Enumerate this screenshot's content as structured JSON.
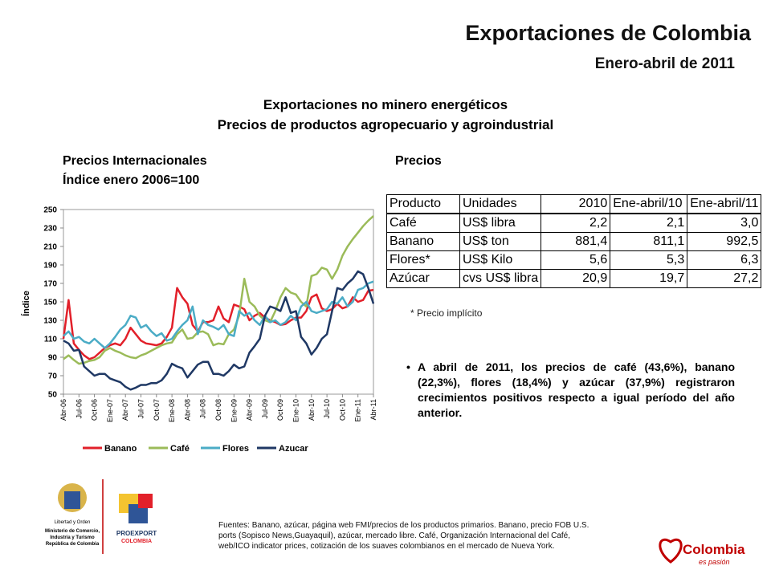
{
  "header": {
    "title": "Exportaciones de Colombia",
    "subtitle": "Enero-abril de 2011"
  },
  "heading": {
    "line1": "Exportaciones no minero energéticos",
    "line2": "Precios de productos agropecuario y agroindustrial"
  },
  "chart_heading": {
    "line1": "Precios Internacionales",
    "line2": "Índice enero 2006=100"
  },
  "table_heading": "Precios",
  "chart_data": {
    "type": "line",
    "y_label": "Índice",
    "ylim": [
      50,
      250
    ],
    "yticks": [
      50,
      70,
      90,
      110,
      130,
      150,
      170,
      190,
      210,
      230,
      250
    ],
    "legend": "bottom",
    "categories": [
      "Abr-06",
      null,
      null,
      "Jul-06",
      null,
      null,
      "Oct-06",
      null,
      null,
      "Ene-07",
      null,
      null,
      "Abr-07",
      null,
      null,
      "Jul-07",
      null,
      null,
      "Oct-07",
      null,
      null,
      "Ene-08",
      null,
      null,
      "Abr-08",
      null,
      null,
      "Jul-08",
      null,
      null,
      "Oct-08",
      null,
      null,
      "Ene-09",
      null,
      null,
      "Abr-09",
      null,
      null,
      "Jul-09",
      null,
      null,
      "Oct-09",
      null,
      null,
      "Ene-10",
      null,
      null,
      "Abr-10",
      null,
      null,
      "Jul-10",
      null,
      null,
      "Oct-10",
      null,
      null,
      "Ene-11",
      null,
      null,
      "Abr-11"
    ],
    "series": [
      {
        "name": "Banano",
        "color": "#e2202a",
        "values": [
          110,
          152,
          105,
          98,
          92,
          88,
          90,
          95,
          100,
          103,
          105,
          103,
          110,
          122,
          115,
          108,
          105,
          104,
          103,
          105,
          112,
          122,
          165,
          155,
          148,
          125,
          118,
          128,
          128,
          130,
          145,
          132,
          128,
          147,
          145,
          142,
          130,
          135,
          138,
          133,
          130,
          128,
          125,
          126,
          130,
          133,
          133,
          140,
          155,
          158,
          143,
          140,
          142,
          148,
          143,
          145,
          155,
          150,
          152,
          162,
          163
        ]
      },
      {
        "name": "Café",
        "color": "#9bbb59",
        "values": [
          88,
          92,
          87,
          83,
          84,
          86,
          87,
          90,
          97,
          100,
          97,
          95,
          92,
          90,
          89,
          92,
          94,
          97,
          100,
          103,
          105,
          106,
          115,
          120,
          110,
          111,
          117,
          118,
          115,
          103,
          105,
          104,
          115,
          120,
          135,
          175,
          150,
          145,
          135,
          130,
          128,
          140,
          155,
          165,
          160,
          158,
          150,
          145,
          178,
          180,
          187,
          185,
          175,
          185,
          200,
          210,
          218,
          225,
          232,
          238,
          243
        ]
      },
      {
        "name": "Flores",
        "color": "#4bacc6",
        "values": [
          113,
          118,
          110,
          112,
          107,
          105,
          110,
          105,
          100,
          105,
          112,
          120,
          125,
          135,
          133,
          122,
          125,
          118,
          113,
          116,
          108,
          110,
          118,
          125,
          130,
          145,
          115,
          130,
          125,
          123,
          120,
          125,
          115,
          113,
          140,
          135,
          138,
          130,
          125,
          135,
          128,
          130,
          125,
          128,
          135,
          130,
          145,
          150,
          140,
          138,
          140,
          142,
          150,
          148,
          155,
          145,
          150,
          163,
          165,
          170,
          172
        ]
      },
      {
        "name": "Azucar",
        "color": "#1f3864",
        "values": [
          108,
          105,
          97,
          98,
          80,
          75,
          70,
          72,
          72,
          67,
          65,
          63,
          58,
          55,
          57,
          60,
          60,
          62,
          62,
          65,
          72,
          83,
          80,
          78,
          68,
          75,
          82,
          85,
          85,
          72,
          72,
          70,
          75,
          82,
          78,
          80,
          95,
          102,
          110,
          135,
          145,
          143,
          140,
          155,
          138,
          140,
          112,
          105,
          93,
          100,
          110,
          115,
          140,
          165,
          163,
          170,
          175,
          183,
          180,
          165,
          148
        ]
      }
    ]
  },
  "table": {
    "header": [
      "Producto",
      "Unidades",
      "2010",
      "Ene-abril/10",
      "Ene-abril/11"
    ],
    "rows": [
      [
        "Café",
        "US$ libra",
        "2,2",
        "2,1",
        "3,0"
      ],
      [
        "Banano",
        "US$ ton",
        "881,4",
        "811,1",
        "992,5"
      ],
      [
        "Flores*",
        "US$ Kilo",
        "5,6",
        "5,3",
        "6,3"
      ],
      [
        "Azúcar",
        "cvs US$ libra",
        "20,9",
        "19,7",
        "27,2"
      ]
    ],
    "note": "* Precio implícito"
  },
  "bullet": "A abril de 2011, los precios de café (43,6%), banano (22,3%), flores (18,4%) y azúcar (37,9%) registraron crecimientos positivos respecto a igual período del año anterior.",
  "sources": "Fuentes: Banano, azúcar, página web FMI/precios de los productos primarios. Banano, precio FOB U.S. ports (Sopisco News,Guayaquil), azúcar, mercado libre. Café, Organización Internacional del Café, web/ICO indicator prices, cotización de los suaves colombianos en el mercado de Nueva York.",
  "logos": {
    "ministry": [
      "Libertad y Orden",
      "Ministerio de Comercio,",
      "Industria y Turismo",
      "República de Colombia"
    ],
    "proexport": [
      "PROEXPORT",
      "COLOMBIA"
    ],
    "brand": [
      "Colombia",
      "es pasión"
    ]
  }
}
